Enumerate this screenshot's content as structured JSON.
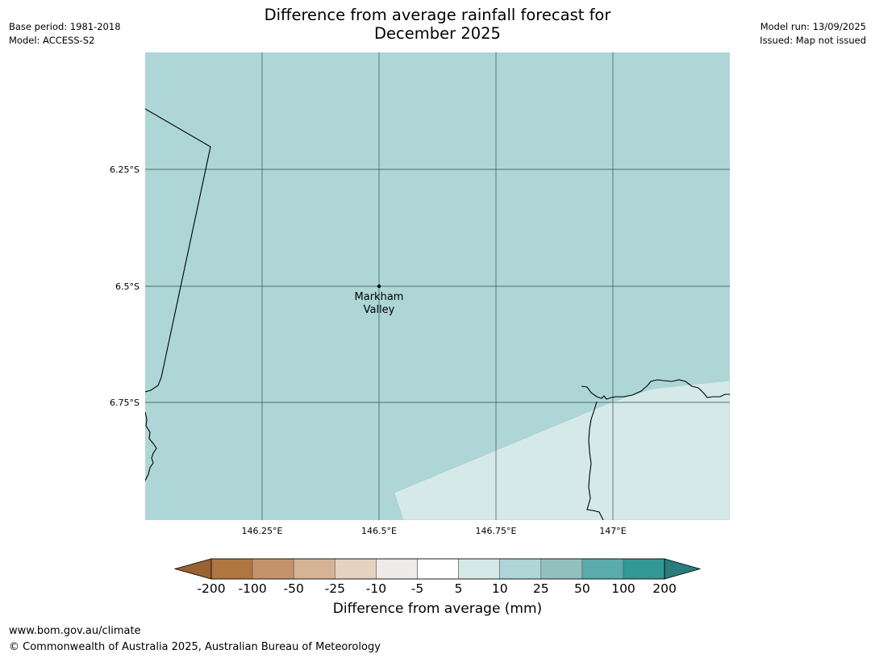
{
  "header": {
    "title_line1": "Difference from average rainfall forecast for",
    "title_line2": "December 2025",
    "base_period": "Base period: 1981-2018",
    "model": "Model: ACCESS-S2",
    "model_run": "Model run: 13/09/2025",
    "issued": "Issued: Map not issued"
  },
  "map": {
    "lat_ticks": [
      "6.25°S",
      "6.5°S",
      "6.75°S"
    ],
    "lon_ticks": [
      "146.25°E",
      "146.5°E",
      "146.75°E",
      "147°E"
    ],
    "place": {
      "name_line1": "Markham",
      "name_line2": "Valley"
    },
    "fill_colors": {
      "category_10_25": "#aed6d6",
      "category_5_10": "#d5e9e8"
    }
  },
  "colorbar": {
    "title": "Difference from average (mm)",
    "labels": [
      "-200",
      "-100",
      "-50",
      "-25",
      "-10",
      "-5",
      "5",
      "10",
      "25",
      "50",
      "100",
      "200"
    ],
    "colors": [
      "#9a6232",
      "#b07540",
      "#c4936b",
      "#d5b394",
      "#e6d2c1",
      "#efebe8",
      "#ffffff",
      "#d5e9e8",
      "#aed6d6",
      "#93c0be",
      "#5aabab",
      "#319896",
      "#2b7c7c"
    ]
  },
  "footer": {
    "url": "www.bom.gov.au/climate",
    "copyright": "© Commonwealth of Australia 2025, Australian Bureau of Meteorology"
  }
}
